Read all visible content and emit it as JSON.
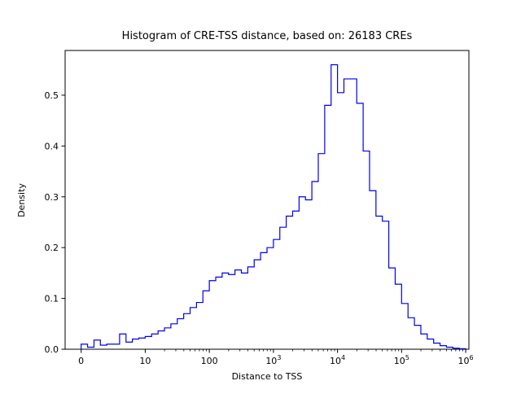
{
  "figure": {
    "title": "Histogram of CRE-TSS distance, based on: 26183 CREs",
    "xlabel": "Distance to TSS",
    "ylabel": "Density",
    "n_cres": 26183
  },
  "chart_data": {
    "type": "bar",
    "subtype": "step-histogram",
    "title": "Histogram of CRE-TSS distance, based on: 26183 CREs",
    "xlabel": "Distance to TSS",
    "ylabel": "Density",
    "line_color": "#0000ee",
    "x_scale": "symlog",
    "linthresh": 10,
    "x_ticks": [
      {
        "value": 0,
        "label": "0"
      },
      {
        "value": 10,
        "label": "10"
      },
      {
        "value": 100,
        "label": "100"
      },
      {
        "value": 1000,
        "label": "10^3"
      },
      {
        "value": 10000,
        "label": "10^4"
      },
      {
        "value": 100000,
        "label": "10^5"
      },
      {
        "value": 1000000,
        "label": "10^6"
      }
    ],
    "y_ticks": [
      "0.0",
      "0.1",
      "0.2",
      "0.3",
      "0.4",
      "0.5"
    ],
    "y_tick_values": [
      0.0,
      0.1,
      0.2,
      0.3,
      0.4,
      0.5
    ],
    "ylim": [
      0,
      0.588
    ],
    "u_range": [
      -0.25,
      6.05
    ],
    "u_mapping": "u = value/10 for value<=10, else u = 1 + log10(value/10)",
    "grid": false,
    "legend": null,
    "bins": {
      "u_start": 0.0,
      "u_width": 0.1,
      "densities": [
        0.01,
        0.004,
        0.018,
        0.008,
        0.01,
        0.01,
        0.03,
        0.014,
        0.02,
        0.022,
        0.025,
        0.03,
        0.036,
        0.042,
        0.05,
        0.06,
        0.07,
        0.082,
        0.092,
        0.115,
        0.135,
        0.142,
        0.15,
        0.147,
        0.156,
        0.15,
        0.162,
        0.176,
        0.19,
        0.2,
        0.216,
        0.24,
        0.262,
        0.272,
        0.3,
        0.294,
        0.33,
        0.385,
        0.48,
        0.56,
        0.505,
        0.532,
        0.532,
        0.484,
        0.39,
        0.312,
        0.262,
        0.252,
        0.16,
        0.128,
        0.09,
        0.062,
        0.047,
        0.03,
        0.02,
        0.012,
        0.007,
        0.004,
        0.002,
        0.001
      ]
    }
  }
}
